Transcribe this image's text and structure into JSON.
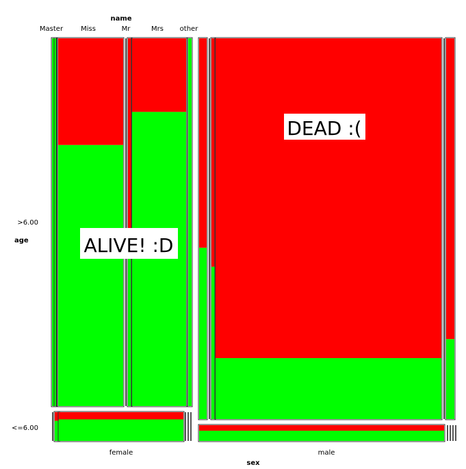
{
  "chart_data": {
    "type": "mosaic",
    "top_label": "name",
    "left_label": "age",
    "bottom_label": "sex",
    "name_categories": [
      "Master",
      "Miss",
      "Mr",
      "Mrs",
      "other"
    ],
    "age_categories": [
      ">6.00",
      "<=6.00"
    ],
    "sex_categories": [
      "female",
      "male"
    ],
    "outcome_colors": {
      "dead": "#ff0000",
      "alive": "#00ff00"
    },
    "annotations": [
      "ALIVE! :D",
      "DEAD :("
    ],
    "cells": [
      {
        "sex": "female",
        "age": ">6.00",
        "name": "Master",
        "dead_fraction": 0.0
      },
      {
        "sex": "female",
        "age": ">6.00",
        "name": "Miss",
        "dead_fraction": 0.0
      },
      {
        "sex": "female",
        "age": ">6.00",
        "name": "Miss",
        "dead_fraction": 0.29
      },
      {
        "sex": "female",
        "age": ">6.00",
        "name": "Mr",
        "dead_fraction": 0.59
      },
      {
        "sex": "female",
        "age": ">6.00",
        "name": "Mrs",
        "dead_fraction": 0.2
      },
      {
        "sex": "female",
        "age": ">6.00",
        "name": "other",
        "dead_fraction": 0.0
      },
      {
        "sex": "female",
        "age": "<=6.00",
        "name": "Master",
        "dead_fraction": 0.3
      },
      {
        "sex": "female",
        "age": "<=6.00",
        "name": "Miss",
        "dead_fraction": 0.25
      },
      {
        "sex": "male",
        "age": ">6.00",
        "name": "Master",
        "dead_fraction": 0.55
      },
      {
        "sex": "male",
        "age": ">6.00",
        "name": "Miss",
        "dead_fraction": 0.6
      },
      {
        "sex": "male",
        "age": ">6.00",
        "name": "Mr",
        "dead_fraction": 0.84
      },
      {
        "sex": "male",
        "age": ">6.00",
        "name": "other",
        "dead_fraction": 0.79
      },
      {
        "sex": "male",
        "age": "<=6.00",
        "name": "Master",
        "dead_fraction": 0.35
      }
    ]
  }
}
